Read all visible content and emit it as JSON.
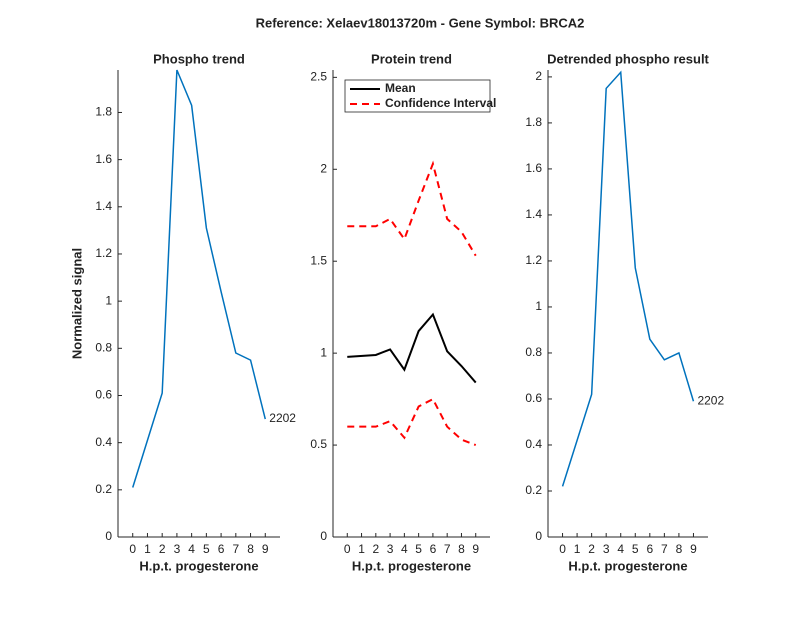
{
  "title": "Reference:  Xelaev18013720m - Gene Symbol:  BRCA2",
  "chart_data": [
    {
      "type": "line",
      "title": "Phospho trend",
      "xlabel": "H.p.t. progesterone",
      "ylabel": "Normalized signal",
      "x": [
        0,
        2,
        3,
        4,
        5,
        6,
        7,
        8,
        9
      ],
      "series": [
        {
          "name": "2202",
          "color": "#0072bd",
          "values": [
            0.21,
            0.61,
            1.98,
            1.83,
            1.31,
            1.04,
            0.78,
            0.75,
            0.5
          ]
        }
      ],
      "xlim": [
        -1,
        10
      ],
      "xticks": [
        0,
        1,
        2,
        3,
        4,
        5,
        6,
        7,
        8,
        9
      ],
      "ylim": [
        0,
        1.98
      ],
      "yticks": [
        0,
        0.2,
        0.4,
        0.6,
        0.8,
        1,
        1.2,
        1.4,
        1.6,
        1.8
      ]
    },
    {
      "type": "band",
      "title": "Protein trend",
      "xlabel": "H.p.t. progesterone",
      "x": [
        0,
        2,
        3,
        4,
        5,
        6,
        7,
        8,
        9
      ],
      "series": [
        {
          "name": "Mean",
          "color": "#000000",
          "values": [
            0.98,
            0.99,
            1.02,
            0.91,
            1.12,
            1.21,
            1.01,
            0.93,
            0.84
          ]
        },
        {
          "name": "Confidence Interval",
          "color": "#ff0000",
          "dashed": true,
          "upper": [
            1.69,
            1.69,
            1.73,
            1.62,
            1.83,
            2.03,
            1.73,
            1.66,
            1.53
          ],
          "lower": [
            0.6,
            0.6,
            0.63,
            0.54,
            0.71,
            0.75,
            0.6,
            0.53,
            0.5
          ]
        }
      ],
      "legend": "top-right",
      "xlim": [
        -1,
        10
      ],
      "xticks": [
        0,
        1,
        2,
        3,
        4,
        5,
        6,
        7,
        8,
        9
      ],
      "ylim": [
        0,
        2.54
      ],
      "yticks": [
        0,
        0.5,
        1,
        1.5,
        2,
        2.5
      ]
    },
    {
      "type": "line",
      "title": "Detrended phospho result",
      "xlabel": "H.p.t. progesterone",
      "x": [
        0,
        2,
        3,
        4,
        5,
        6,
        7,
        8,
        9
      ],
      "series": [
        {
          "name": "2202",
          "color": "#0072bd",
          "values": [
            0.22,
            0.62,
            1.95,
            2.02,
            1.17,
            0.86,
            0.77,
            0.8,
            0.59
          ]
        }
      ],
      "xlim": [
        -1,
        10
      ],
      "xticks": [
        0,
        1,
        2,
        3,
        4,
        5,
        6,
        7,
        8,
        9
      ],
      "ylim": [
        0,
        2.03
      ],
      "yticks": [
        0,
        0.2,
        0.4,
        0.6,
        0.8,
        1,
        1.2,
        1.4,
        1.6,
        1.8,
        2
      ]
    }
  ]
}
